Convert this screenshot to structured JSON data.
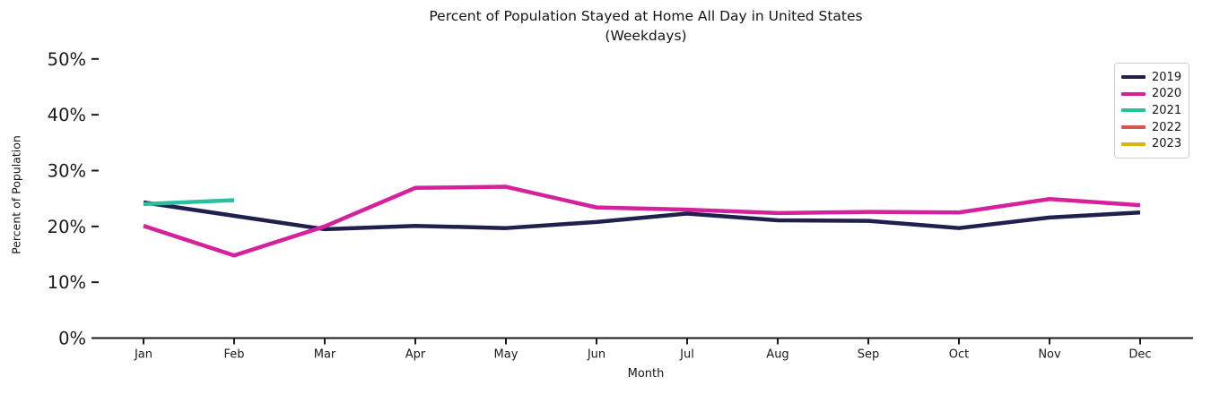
{
  "title": {
    "line1": "Percent of Population Stayed at Home All Day in United States",
    "line2": "(Weekdays)"
  },
  "chart_data": {
    "type": "line",
    "title": "Percent of Population Stayed at Home All Day in United States (Weekdays)",
    "xlabel": "Month",
    "ylabel": "Percent of Population",
    "x": [
      "Jan",
      "Feb",
      "Mar",
      "Apr",
      "May",
      "Jun",
      "Jul",
      "Aug",
      "Sep",
      "Oct",
      "Nov",
      "Dec"
    ],
    "yticks": [
      {
        "value": 0,
        "label": "0%"
      },
      {
        "value": 10,
        "label": "10%"
      },
      {
        "value": 20,
        "label": "20%"
      },
      {
        "value": 30,
        "label": "30%"
      },
      {
        "value": 40,
        "label": "40%"
      },
      {
        "value": 50,
        "label": "50%"
      }
    ],
    "ylim": [
      0,
      51.5
    ],
    "grid": false,
    "legend_position": "upper right",
    "axis_color": "#1a1a1a",
    "series": [
      {
        "name": "2019",
        "color": "#20204e",
        "values": [
          24.3,
          21.9,
          19.5,
          20.1,
          19.7,
          20.8,
          22.3,
          21.1,
          21.0,
          19.7,
          21.6,
          22.5
        ]
      },
      {
        "name": "2020",
        "color": "#d5219b",
        "values": [
          20.1,
          14.8,
          20.0,
          26.9,
          27.1,
          23.4,
          23.0,
          22.4,
          22.6,
          22.5,
          24.9,
          23.8
        ]
      },
      {
        "name": "2021",
        "color": "#2abf9e",
        "values": [
          24.0,
          24.7
        ]
      },
      {
        "name": "2022",
        "color": "#d5584b",
        "values": []
      },
      {
        "name": "2023",
        "color": "#dfb214",
        "values": []
      }
    ]
  }
}
